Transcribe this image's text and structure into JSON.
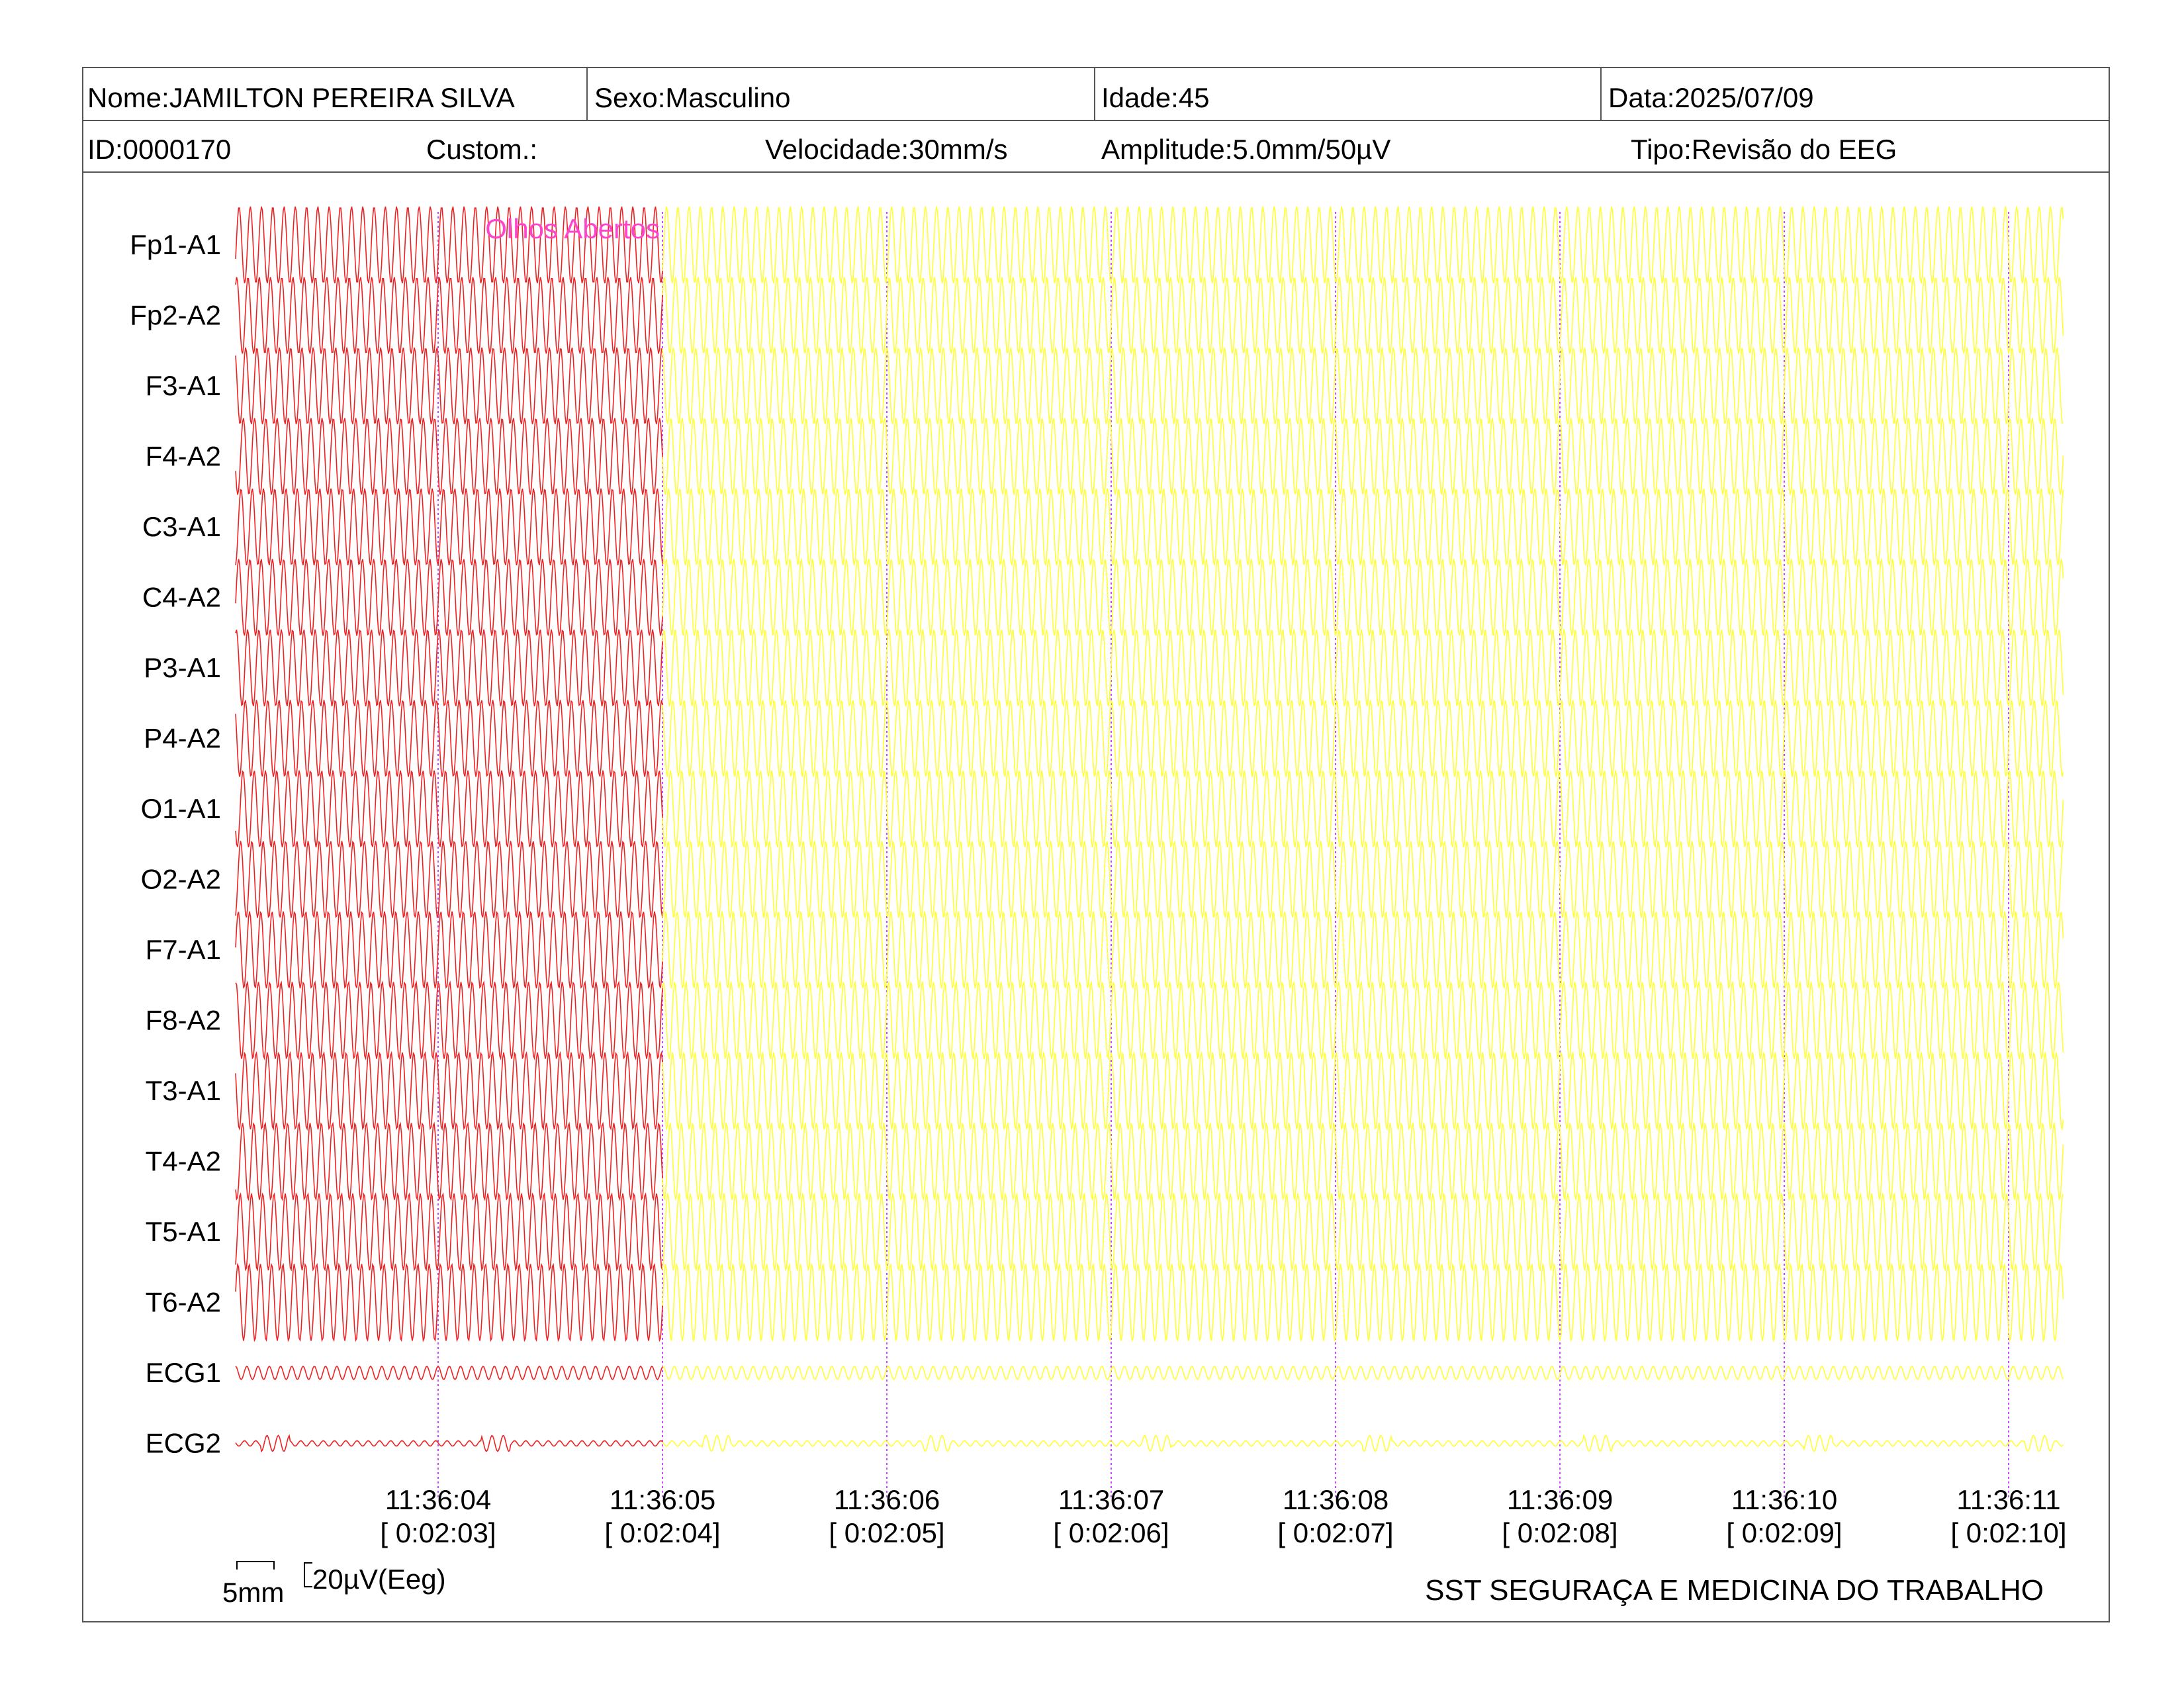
{
  "header": {
    "name": "Nome:JAMILTON PEREIRA SILVA",
    "sex": "Sexo:Masculino",
    "age": "Idade:45",
    "date": "Data:2025/07/09",
    "id": "ID:0000170",
    "custom": "Custom.:",
    "speed": "Velocidade:30mm/s",
    "amplitude": "Amplitude:5.0mm/50µV",
    "type": "Tipo:Revisão do EEG"
  },
  "chart_data": {
    "type": "line",
    "title": "",
    "channels": [
      "Fp1-A1",
      "Fp2-A2",
      "F3-A1",
      "F4-A2",
      "C3-A1",
      "C4-A2",
      "P3-A1",
      "P4-A2",
      "O1-A1",
      "O2-A2",
      "F7-A1",
      "F8-A2",
      "T3-A1",
      "T4-A2",
      "T5-A1",
      "T6-A2",
      "ECG1",
      "ECG2"
    ],
    "time_ticks": [
      {
        "clock": "11:36:04",
        "elapsed": "[ 0:02:03]"
      },
      {
        "clock": "11:36:05",
        "elapsed": "[ 0:02:04]"
      },
      {
        "clock": "11:36:06",
        "elapsed": "[ 0:02:05]"
      },
      {
        "clock": "11:36:07",
        "elapsed": "[ 0:02:06]"
      },
      {
        "clock": "11:36:08",
        "elapsed": "[ 0:02:07]"
      },
      {
        "clock": "11:36:09",
        "elapsed": "[ 0:02:08]"
      },
      {
        "clock": "11:36:10",
        "elapsed": "[ 0:02:09]"
      },
      {
        "clock": "11:36:11",
        "elapsed": "[ 0:02:10]"
      }
    ],
    "annotation": {
      "text": "Olhos Abertos",
      "time": "11:36:05"
    },
    "segments": [
      {
        "color": "#ee2222",
        "from": "start",
        "to": "11:36:05"
      },
      {
        "color": "#ffff33",
        "from": "11:36:05",
        "to": "end"
      }
    ],
    "speed_mm_per_s": 30,
    "amplitude": "5.0mm/50µV",
    "annotation_color": "#ff44cc",
    "marker_color": "#cc44ff"
  },
  "scale": {
    "time_label": "5mm",
    "amp_label": "20µV(Eeg)"
  },
  "footer": {
    "company": "SST SEGURAÇA E MEDICINA DO TRABALHO"
  }
}
